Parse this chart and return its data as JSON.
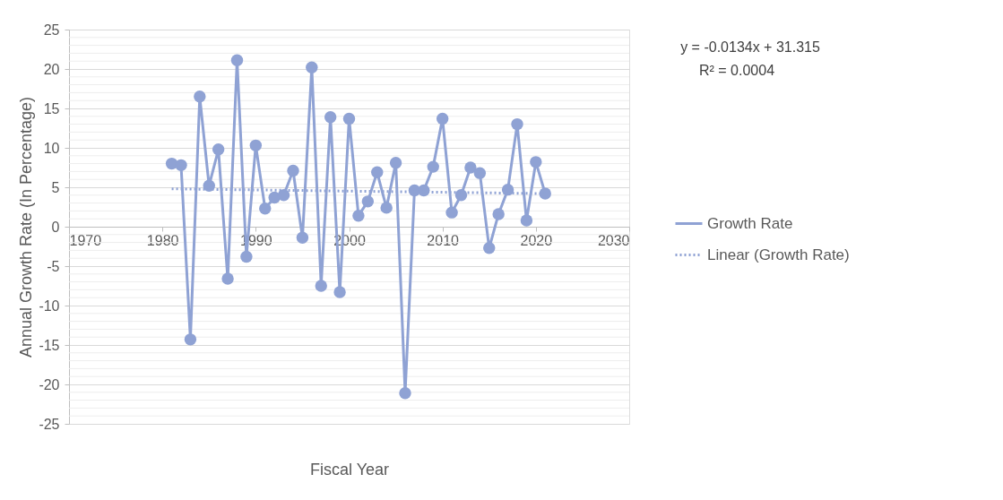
{
  "chart_data": {
    "type": "line",
    "xlabel": "Fiscal Year",
    "ylabel": "Annual Growth Rate (In Percentage)",
    "xlim": [
      1970,
      2030
    ],
    "xticks": [
      1970,
      1980,
      1990,
      2000,
      2010,
      2020,
      2030
    ],
    "ylim": [
      -25,
      25
    ],
    "yticks": [
      -25,
      {
        "value": -24,
        "label": null
      },
      {
        "value": -23,
        "label": null
      },
      {
        "value": -22,
        "label": null
      },
      {
        "value": -21,
        "label": null
      },
      -20,
      {
        "value": -19,
        "label": null
      },
      {
        "value": -18,
        "label": null
      },
      {
        "value": -17,
        "label": null
      },
      {
        "value": -16,
        "label": null
      },
      -15,
      {
        "value": -14,
        "label": null
      },
      {
        "value": -13,
        "label": null
      },
      {
        "value": -12,
        "label": null
      },
      {
        "value": -11,
        "label": null
      },
      -10,
      {
        "value": -9,
        "label": null
      },
      {
        "value": -8,
        "label": null
      },
      {
        "value": -7,
        "label": null
      },
      {
        "value": -6,
        "label": null
      },
      -5,
      {
        "value": -4,
        "label": null
      },
      {
        "value": -3,
        "label": null
      },
      {
        "value": -2,
        "label": null
      },
      {
        "value": -1,
        "label": null
      },
      0,
      {
        "value": 1,
        "label": null
      },
      {
        "value": 2,
        "label": null
      },
      {
        "value": 3,
        "label": null
      },
      {
        "value": 4,
        "label": null
      },
      5,
      {
        "value": 6,
        "label": null
      },
      {
        "value": 7,
        "label": null
      },
      {
        "value": 8,
        "label": null
      },
      {
        "value": 9,
        "label": null
      },
      10,
      {
        "value": 11,
        "label": null
      },
      {
        "value": 12,
        "label": null
      },
      {
        "value": 13,
        "label": null
      },
      {
        "value": 14,
        "label": null
      },
      15,
      {
        "value": 16,
        "label": null
      },
      {
        "value": 17,
        "label": null
      },
      {
        "value": 18,
        "label": null
      },
      {
        "value": 19,
        "label": null
      },
      20,
      {
        "value": 21,
        "label": null
      },
      {
        "value": 22,
        "label": null
      },
      {
        "value": 23,
        "label": null
      },
      {
        "value": 24,
        "label": null
      },
      25
    ],
    "grid": "y",
    "legend": "right",
    "annotations": [
      "y = -0.0134x + 31.315",
      "R² = 0.0004"
    ],
    "series": [
      {
        "name": "Growth Rate",
        "type": "line",
        "color": "#8fa2d4",
        "marker": "circle",
        "line_style": "solid",
        "x": [
          1981,
          1982,
          1983,
          1984,
          1985,
          1986,
          1987,
          1988,
          1989,
          1990,
          1991,
          1992,
          1993,
          1994,
          1995,
          1996,
          1997,
          1998,
          1999,
          2000,
          2001,
          2002,
          2003,
          2004,
          2005,
          2006,
          2007,
          2008,
          2009,
          2010,
          2011,
          2012,
          2013,
          2014,
          2015,
          2016,
          2017,
          2018,
          2019,
          2020,
          2021
        ],
        "values": [
          8.0,
          7.8,
          -14.3,
          16.5,
          5.2,
          9.8,
          -6.6,
          21.1,
          -3.8,
          10.3,
          2.3,
          3.7,
          4.0,
          7.1,
          -1.4,
          20.2,
          -7.5,
          13.9,
          -8.3,
          13.7,
          1.4,
          3.2,
          6.9,
          2.4,
          8.1,
          -21.1,
          4.6,
          4.6,
          7.6,
          13.7,
          1.8,
          4.0,
          7.5,
          6.8,
          -2.7,
          1.6,
          4.7,
          13.0,
          0.8,
          8.2,
          4.2
        ]
      },
      {
        "name": "Linear (Growth Rate)",
        "type": "line",
        "color": "#8fa2d4",
        "marker": "none",
        "line_style": "dotted",
        "x": [
          1981,
          2021
        ],
        "values": [
          4.8,
          4.2
        ]
      }
    ]
  }
}
